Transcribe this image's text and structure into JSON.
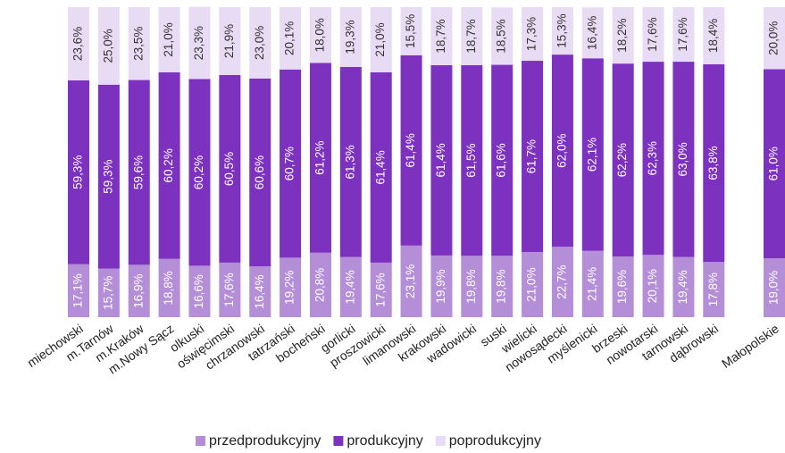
{
  "chart_data": {
    "type": "stacked_bar",
    "categories": [
      "miechowski",
      "m.Tarnów",
      "m.Kraków",
      "m.Nowy Sącz",
      "olkuski",
      "oświęcimski",
      "chrzanowski",
      "tatrzański",
      "bocheński",
      "gorlicki",
      "proszowicki",
      "limanowski",
      "krakowski",
      "wadowicki",
      "suski",
      "wielicki",
      "nowosądecki",
      "myślenicki",
      "brzeski",
      "nowotarski",
      "tarnowski",
      "dąbrowski",
      null,
      "Małopolskie"
    ],
    "ylim": [
      0,
      100
    ],
    "legend": "bottom",
    "series": [
      {
        "name": "przedprodukcyjny",
        "color": "#b48fd8",
        "values": [
          17.1,
          15.7,
          16.9,
          18.8,
          16.6,
          17.6,
          16.4,
          19.2,
          20.8,
          19.4,
          17.6,
          23.1,
          19.9,
          19.8,
          19.8,
          21.0,
          22.7,
          21.4,
          19.6,
          20.1,
          19.4,
          17.8,
          null,
          19.0
        ],
        "value_labels": [
          "17,1%",
          "15,7%",
          "16,9%",
          "18,8%",
          "16,6%",
          "17,6%",
          "16,4%",
          "19,2%",
          "20,8%",
          "19,4%",
          "17,6%",
          "23,1%",
          "19,9%",
          "19,8%",
          "19,8%",
          "21,0%",
          "22,7%",
          "21,4%",
          "19,6%",
          "20,1%",
          "19,4%",
          "17,8%",
          null,
          "19,0%"
        ]
      },
      {
        "name": "produkcyjny",
        "color": "#7c31bf",
        "values": [
          59.3,
          59.3,
          59.6,
          60.2,
          60.2,
          60.5,
          60.6,
          60.7,
          61.2,
          61.3,
          61.4,
          61.4,
          61.4,
          61.5,
          61.6,
          61.7,
          62.0,
          62.1,
          62.2,
          62.3,
          63.0,
          63.8,
          null,
          61.0
        ],
        "value_labels": [
          "59,3%",
          "59,3%",
          "59,6%",
          "60,2%",
          "60,2%",
          "60,5%",
          "60,6%",
          "60,7%",
          "61,2%",
          "61,3%",
          "61,4%",
          "61,4%",
          "61,4%",
          "61,5%",
          "61,6%",
          "61,7%",
          "62,0%",
          "62,1%",
          "62,2%",
          "62,3%",
          "63,0%",
          "63,8%",
          null,
          "61,0%"
        ]
      },
      {
        "name": "poprodukcyjny",
        "color": "#e8dbf4",
        "values": [
          23.6,
          25.0,
          23.5,
          21.0,
          23.3,
          21.9,
          23.0,
          20.1,
          18.0,
          19.3,
          21.0,
          15.5,
          18.7,
          18.7,
          18.5,
          17.3,
          15.3,
          16.4,
          18.2,
          17.6,
          17.6,
          18.4,
          null,
          20.0
        ],
        "value_labels": [
          "23,6%",
          "25,0%",
          "23,5%",
          "21,0%",
          "23,3%",
          "21,9%",
          "23,0%",
          "20,1%",
          "18,0%",
          "19,3%",
          "21,0%",
          "15,5%",
          "18,7%",
          "18,7%",
          "18,5%",
          "17,3%",
          "15,3%",
          "16,4%",
          "18,2%",
          "17,6%",
          "17,6%",
          "18,4%",
          null,
          "20,0%"
        ]
      }
    ]
  }
}
